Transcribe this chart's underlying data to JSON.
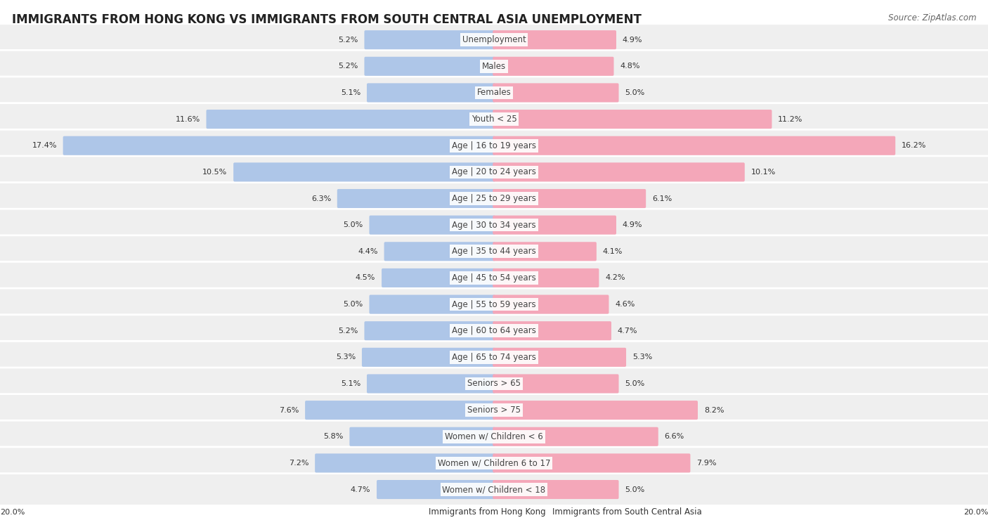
{
  "title": "IMMIGRANTS FROM HONG KONG VS IMMIGRANTS FROM SOUTH CENTRAL ASIA UNEMPLOYMENT",
  "source": "Source: ZipAtlas.com",
  "categories": [
    "Unemployment",
    "Males",
    "Females",
    "Youth < 25",
    "Age | 16 to 19 years",
    "Age | 20 to 24 years",
    "Age | 25 to 29 years",
    "Age | 30 to 34 years",
    "Age | 35 to 44 years",
    "Age | 45 to 54 years",
    "Age | 55 to 59 years",
    "Age | 60 to 64 years",
    "Age | 65 to 74 years",
    "Seniors > 65",
    "Seniors > 75",
    "Women w/ Children < 6",
    "Women w/ Children 6 to 17",
    "Women w/ Children < 18"
  ],
  "left_values": [
    5.2,
    5.2,
    5.1,
    11.6,
    17.4,
    10.5,
    6.3,
    5.0,
    4.4,
    4.5,
    5.0,
    5.2,
    5.3,
    5.1,
    7.6,
    5.8,
    7.2,
    4.7
  ],
  "right_values": [
    4.9,
    4.8,
    5.0,
    11.2,
    16.2,
    10.1,
    6.1,
    4.9,
    4.1,
    4.2,
    4.6,
    4.7,
    5.3,
    5.0,
    8.2,
    6.6,
    7.9,
    5.0
  ],
  "left_color": "#aec6e8",
  "right_color": "#f4a7b9",
  "row_bg_color": "#efefef",
  "row_border_color": "#ffffff",
  "axis_max": 20.0,
  "legend_left": "Immigrants from Hong Kong",
  "legend_right": "Immigrants from South Central Asia",
  "title_fontsize": 12,
  "source_fontsize": 8.5,
  "label_fontsize": 8.5,
  "value_fontsize": 8.0,
  "legend_fontsize": 8.5
}
